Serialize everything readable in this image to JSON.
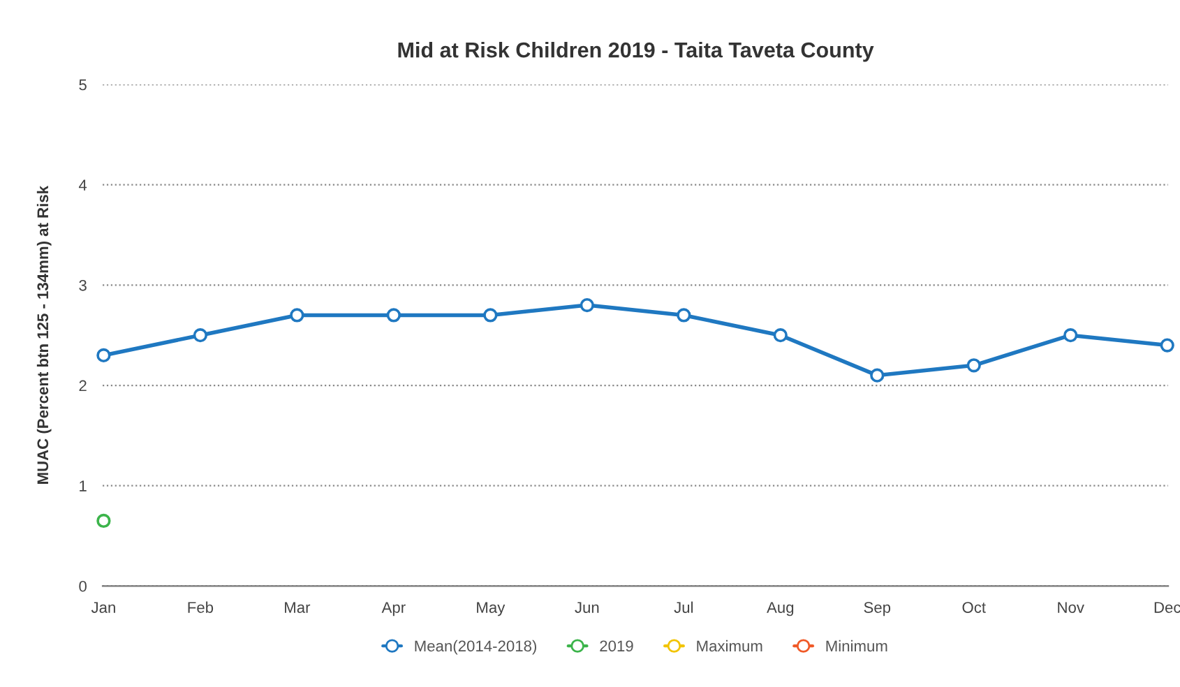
{
  "chart_data": {
    "type": "line",
    "title": "Mid at Risk Children 2019 - Taita Taveta County",
    "ylabel": "MUAC (Percent btn 125 - 134mm) at Risk",
    "categories": [
      "Jan",
      "Feb",
      "Mar",
      "Apr",
      "May",
      "Jun",
      "Jul",
      "Aug",
      "Sep",
      "Oct",
      "Nov",
      "Dec"
    ],
    "series": [
      {
        "name": "Mean(2014-2018)",
        "color": "#1f78c1",
        "values": [
          2.3,
          2.5,
          2.7,
          2.7,
          2.7,
          2.8,
          2.7,
          2.5,
          2.1,
          2.2,
          2.5,
          2.4
        ]
      },
      {
        "name": "2019",
        "color": "#3cb44b",
        "values": [
          0.65,
          null,
          null,
          null,
          null,
          null,
          null,
          null,
          null,
          null,
          null,
          null
        ]
      },
      {
        "name": "Maximum",
        "color": "#f2c400",
        "values": [
          null,
          null,
          null,
          null,
          null,
          null,
          null,
          null,
          null,
          null,
          null,
          null
        ]
      },
      {
        "name": "Minimum",
        "color": "#f05a28",
        "values": [
          null,
          null,
          null,
          null,
          null,
          null,
          null,
          null,
          null,
          null,
          null,
          null
        ]
      }
    ],
    "ylim": [
      0,
      5
    ],
    "yticks": [
      0,
      1,
      2,
      3,
      4,
      5
    ],
    "grid": "y",
    "legend": "bottom",
    "marker": "circle",
    "line_style": "solid"
  }
}
